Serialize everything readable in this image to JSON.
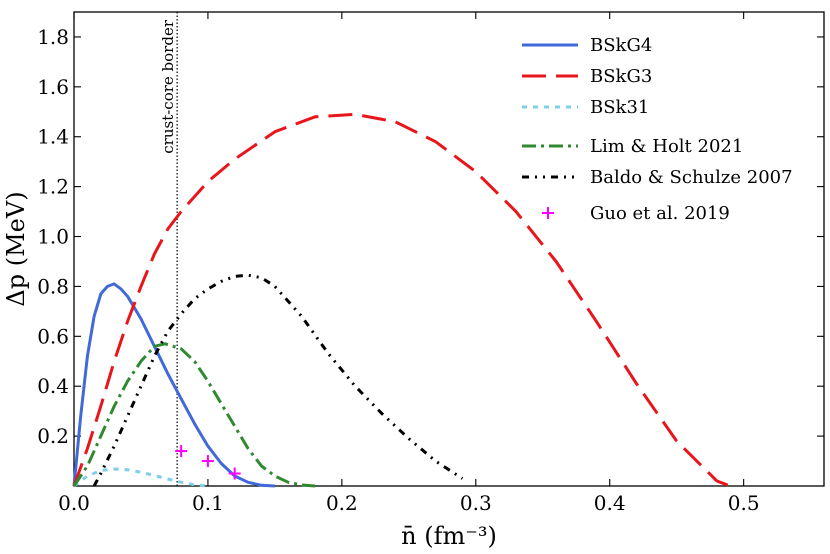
{
  "chart_data": {
    "type": "line",
    "xlabel": "n̄ (fm⁻³)",
    "ylabel": "Δp (MeV)",
    "xlim": [
      0,
      0.56
    ],
    "ylim": [
      0,
      1.9
    ],
    "xticks": [
      0.0,
      0.1,
      0.2,
      0.3,
      0.4,
      0.5
    ],
    "xtick_labels": [
      "0.0",
      "0.1",
      "0.2",
      "0.3",
      "0.4",
      "0.5"
    ],
    "yticks": [
      0.2,
      0.4,
      0.6,
      0.8,
      1.0,
      1.2,
      1.4,
      1.6,
      1.8
    ],
    "ytick_labels": [
      "0.2",
      "0.4",
      "0.6",
      "0.8",
      "1.0",
      "1.2",
      "1.4",
      "1.6",
      "1.8"
    ],
    "legend_position": "top-right",
    "border": {
      "x": 0.077,
      "label": "crust-core border"
    },
    "series": [
      {
        "name": "BSkG4",
        "color": "#4169d8",
        "style": "solid",
        "x": [
          0,
          0.005,
          0.01,
          0.015,
          0.02,
          0.025,
          0.03,
          0.035,
          0.04,
          0.05,
          0.06,
          0.07,
          0.08,
          0.09,
          0.1,
          0.11,
          0.12,
          0.13,
          0.14,
          0.15
        ],
        "y": [
          0,
          0.28,
          0.52,
          0.68,
          0.77,
          0.8,
          0.81,
          0.79,
          0.76,
          0.67,
          0.56,
          0.45,
          0.35,
          0.25,
          0.16,
          0.09,
          0.04,
          0.015,
          0.003,
          0
        ]
      },
      {
        "name": "BSkG3",
        "color": "#e8161b",
        "style": "dashed",
        "x": [
          0,
          0.01,
          0.02,
          0.03,
          0.04,
          0.05,
          0.06,
          0.07,
          0.08,
          0.1,
          0.12,
          0.15,
          0.18,
          0.21,
          0.24,
          0.27,
          0.3,
          0.33,
          0.36,
          0.39,
          0.42,
          0.45,
          0.48,
          0.49
        ],
        "y": [
          0,
          0.15,
          0.32,
          0.5,
          0.66,
          0.8,
          0.93,
          1.03,
          1.1,
          1.22,
          1.31,
          1.42,
          1.48,
          1.49,
          1.46,
          1.38,
          1.26,
          1.1,
          0.9,
          0.66,
          0.41,
          0.18,
          0.02,
          0
        ]
      },
      {
        "name": "BSk31",
        "color": "#7ecfe8",
        "style": "dotted",
        "x": [
          0,
          0.01,
          0.02,
          0.03,
          0.04,
          0.05,
          0.06,
          0.07,
          0.08,
          0.09,
          0.1
        ],
        "y": [
          0,
          0.04,
          0.062,
          0.068,
          0.065,
          0.055,
          0.042,
          0.028,
          0.015,
          0.005,
          0
        ]
      },
      {
        "name": "Lim & Holt 2021",
        "color": "#2f8a2f",
        "style": "dashdot",
        "x": [
          0,
          0.01,
          0.02,
          0.03,
          0.04,
          0.05,
          0.06,
          0.068,
          0.08,
          0.09,
          0.1,
          0.11,
          0.12,
          0.13,
          0.14,
          0.15,
          0.16,
          0.17,
          0.18
        ],
        "y": [
          0,
          0.08,
          0.2,
          0.32,
          0.42,
          0.5,
          0.56,
          0.57,
          0.55,
          0.5,
          0.42,
          0.33,
          0.24,
          0.15,
          0.08,
          0.04,
          0.015,
          0.004,
          0
        ]
      },
      {
        "name": "Baldo & Schulze 2007",
        "color": "#000000",
        "style": "dashdotdot",
        "x": [
          0.015,
          0.02,
          0.03,
          0.04,
          0.05,
          0.06,
          0.07,
          0.08,
          0.09,
          0.1,
          0.11,
          0.12,
          0.13,
          0.14,
          0.15,
          0.17,
          0.19,
          0.21,
          0.23,
          0.25,
          0.27,
          0.29
        ],
        "y": [
          0,
          0.05,
          0.16,
          0.28,
          0.4,
          0.52,
          0.62,
          0.69,
          0.75,
          0.79,
          0.82,
          0.84,
          0.845,
          0.835,
          0.8,
          0.68,
          0.53,
          0.4,
          0.29,
          0.19,
          0.1,
          0.03
        ]
      }
    ],
    "points": {
      "name": "Guo et al. 2019",
      "color": "#ff00ff",
      "marker": "+",
      "x": [
        0.08,
        0.1,
        0.12
      ],
      "y": [
        0.14,
        0.1,
        0.05
      ]
    }
  }
}
